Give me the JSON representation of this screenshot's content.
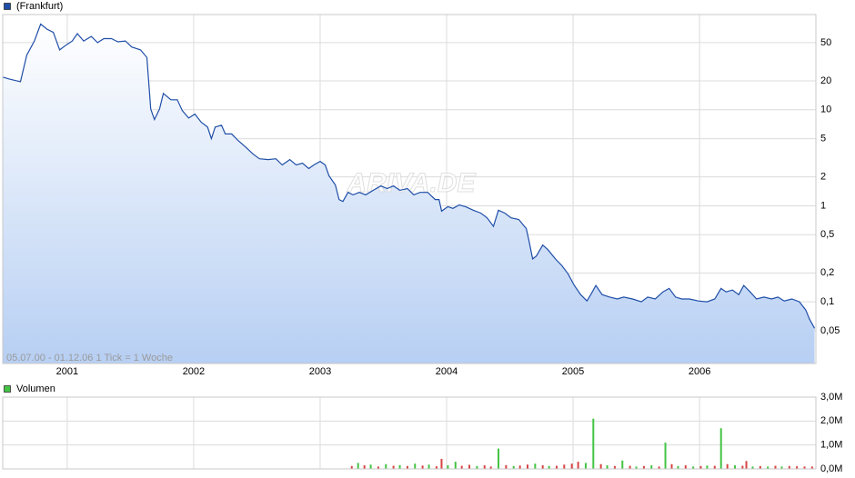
{
  "chart_data": [
    {
      "type": "area",
      "log_y": true,
      "grid": true,
      "legend": "top-left",
      "footnote": "05.07.00 - 01.12.06   1 Tick = 1 Woche",
      "watermark": "ARIVA.DE",
      "xlim": [
        2000.49,
        2006.92
      ],
      "xticks": [
        2001,
        2002,
        2003,
        2004,
        2005,
        2006
      ],
      "ylim": [
        0.0228,
        98
      ],
      "yticks": [
        50,
        20,
        10,
        5,
        2,
        1,
        {
          "value": 0.5,
          "label": "0,5"
        },
        {
          "value": 0.2,
          "label": "0,2"
        },
        {
          "value": 0.1,
          "label": "0,1"
        },
        {
          "value": 0.05,
          "label": "0,05"
        }
      ],
      "series": [
        {
          "name": "(Frankfurt)",
          "color": "#1f4ea8",
          "x": [
            2000.49,
            2000.54,
            2000.63,
            2000.68,
            2000.74,
            2000.79,
            2000.84,
            2000.89,
            2000.94,
            2000.99,
            2001.04,
            2001.08,
            2001.13,
            2001.19,
            2001.24,
            2001.29,
            2001.35,
            2001.4,
            2001.46,
            2001.51,
            2001.58,
            2001.63,
            2001.66,
            2001.69,
            2001.73,
            2001.76,
            2001.82,
            2001.87,
            2001.91,
            2001.96,
            2002.01,
            2002.06,
            2002.11,
            2002.14,
            2002.17,
            2002.22,
            2002.25,
            2002.3,
            2002.35,
            2002.41,
            2002.47,
            2002.52,
            2002.59,
            2002.65,
            2002.7,
            2002.76,
            2002.81,
            2002.86,
            2002.91,
            2002.95,
            2003.0,
            2003.04,
            2003.07,
            2003.12,
            2003.15,
            2003.18,
            2003.22,
            2003.26,
            2003.31,
            2003.36,
            2003.42,
            2003.48,
            2003.53,
            2003.58,
            2003.63,
            2003.69,
            2003.74,
            2003.79,
            2003.85,
            2003.91,
            2003.94,
            2003.96,
            2004.01,
            2004.05,
            2004.1,
            2004.15,
            2004.21,
            2004.27,
            2004.32,
            2004.37,
            2004.41,
            2004.46,
            2004.51,
            2004.57,
            2004.63,
            2004.65,
            2004.68,
            2004.71,
            2004.76,
            2004.8,
            2004.86,
            2004.91,
            2004.96,
            2005.01,
            2005.06,
            2005.11,
            2005.14,
            2005.18,
            2005.23,
            2005.29,
            2005.35,
            2005.4,
            2005.47,
            2005.54,
            2005.59,
            2005.65,
            2005.71,
            2005.76,
            2005.81,
            2005.86,
            2005.92,
            2005.99,
            2006.06,
            2006.12,
            2006.17,
            2006.21,
            2006.26,
            2006.31,
            2006.35,
            2006.4,
            2006.45,
            2006.51,
            2006.57,
            2006.62,
            2006.67,
            2006.73,
            2006.79,
            2006.84,
            2006.87,
            2006.91
          ],
          "values": [
            21.9,
            20.9,
            19.6,
            37,
            52,
            78,
            69,
            64,
            42,
            47,
            52,
            62,
            52,
            58,
            50,
            55,
            55,
            51,
            52,
            45,
            42,
            35,
            10.2,
            7.9,
            10.2,
            14.8,
            12.7,
            12.7,
            9.8,
            8.2,
            9.0,
            7.4,
            6.6,
            5.0,
            6.6,
            6.9,
            5.6,
            5.6,
            4.8,
            4.1,
            3.45,
            3.09,
            3.03,
            3.09,
            2.66,
            3.03,
            2.66,
            2.78,
            2.44,
            2.66,
            2.9,
            2.66,
            2.05,
            1.65,
            1.16,
            1.11,
            1.38,
            1.3,
            1.38,
            1.3,
            1.45,
            1.61,
            1.51,
            1.61,
            1.45,
            1.51,
            1.3,
            1.38,
            1.38,
            1.16,
            1.16,
            0.88,
            0.98,
            0.94,
            1.02,
            0.98,
            0.9,
            0.84,
            0.75,
            0.61,
            0.9,
            0.84,
            0.75,
            0.72,
            0.58,
            0.44,
            0.28,
            0.3,
            0.39,
            0.35,
            0.28,
            0.24,
            0.196,
            0.148,
            0.119,
            0.102,
            0.119,
            0.148,
            0.119,
            0.112,
            0.107,
            0.112,
            0.107,
            0.1,
            0.112,
            0.107,
            0.127,
            0.138,
            0.112,
            0.107,
            0.107,
            0.102,
            0.1,
            0.107,
            0.138,
            0.127,
            0.133,
            0.119,
            0.148,
            0.127,
            0.107,
            0.112,
            0.107,
            0.112,
            0.102,
            0.107,
            0.1,
            0.082,
            0.066,
            0.053
          ]
        }
      ]
    },
    {
      "type": "bar",
      "grid": true,
      "legend": "top-left",
      "xlim": [
        2000.49,
        2006.92
      ],
      "xticks": [
        2001,
        2002,
        2003,
        2004,
        2005,
        2006
      ],
      "ylim": [
        0,
        3000000
      ],
      "yticks": [
        {
          "value": 0,
          "label": "0,0M"
        },
        {
          "value": 1000000,
          "label": "1,0M"
        },
        {
          "value": 2000000,
          "label": "2,0M"
        },
        {
          "value": 3000000,
          "label": "3,0M"
        }
      ],
      "series": [
        {
          "name": "Volumen",
          "color": "#44c444",
          "x": [
            2003.25,
            2003.3,
            2003.35,
            2003.4,
            2003.46,
            2003.52,
            2003.58,
            2003.63,
            2003.69,
            2003.75,
            2003.81,
            2003.86,
            2003.92,
            2003.96,
            2004.01,
            2004.07,
            2004.12,
            2004.18,
            2004.24,
            2004.3,
            2004.35,
            2004.41,
            2004.47,
            2004.53,
            2004.58,
            2004.64,
            2004.7,
            2004.76,
            2004.81,
            2004.87,
            2004.93,
            2004.99,
            2005.04,
            2005.1,
            2005.16,
            2005.22,
            2005.27,
            2005.33,
            2005.39,
            2005.45,
            2005.5,
            2005.56,
            2005.62,
            2005.68,
            2005.73,
            2005.78,
            2005.83,
            2005.89,
            2005.95,
            2006.01,
            2006.06,
            2006.12,
            2006.17,
            2006.22,
            2006.28,
            2006.34,
            2006.37,
            2006.42,
            2006.48,
            2006.54,
            2006.6,
            2006.65,
            2006.71,
            2006.77,
            2006.83,
            2006.89
          ],
          "values": [
            120000,
            250000,
            150000,
            180000,
            100000,
            200000,
            130000,
            160000,
            120000,
            220000,
            140000,
            180000,
            110000,
            420000,
            150000,
            300000,
            130000,
            170000,
            120000,
            150000,
            100000,
            850000,
            160000,
            120000,
            140000,
            180000,
            220000,
            150000,
            120000,
            130000,
            180000,
            220000,
            300000,
            250000,
            2100000,
            200000,
            150000,
            120000,
            350000,
            130000,
            100000,
            120000,
            150000,
            100000,
            1100000,
            200000,
            120000,
            150000,
            100000,
            120000,
            140000,
            130000,
            1700000,
            200000,
            150000,
            130000,
            330000,
            100000,
            120000,
            100000,
            130000,
            100000,
            120000,
            110000,
            100000,
            100000
          ],
          "bar_colors": [
            "#d84444",
            "#44c444",
            "#d84444",
            "#44c444",
            "#d84444",
            "#44c444",
            "#d84444",
            "#44c444",
            "#d84444",
            "#44c444",
            "#d84444",
            "#44c444",
            "#d84444",
            "#d84444",
            "#44c444",
            "#44c444",
            "#d84444",
            "#d84444",
            "#44c444",
            "#d84444",
            "#d84444",
            "#44c444",
            "#d84444",
            "#44c444",
            "#d84444",
            "#d84444",
            "#44c444",
            "#d84444",
            "#44c444",
            "#d84444",
            "#d84444",
            "#d84444",
            "#d84444",
            "#44c444",
            "#44c444",
            "#d84444",
            "#44c444",
            "#d84444",
            "#44c444",
            "#d84444",
            "#44c444",
            "#d84444",
            "#44c444",
            "#d84444",
            "#44c444",
            "#d84444",
            "#44c444",
            "#d84444",
            "#44c444",
            "#d84444",
            "#44c444",
            "#d84444",
            "#44c444",
            "#d84444",
            "#44c444",
            "#d84444",
            "#d84444",
            "#44c444",
            "#d84444",
            "#44c444",
            "#d84444",
            "#44c444",
            "#d84444",
            "#d84444",
            "#d84444",
            "#d84444"
          ]
        }
      ]
    }
  ]
}
